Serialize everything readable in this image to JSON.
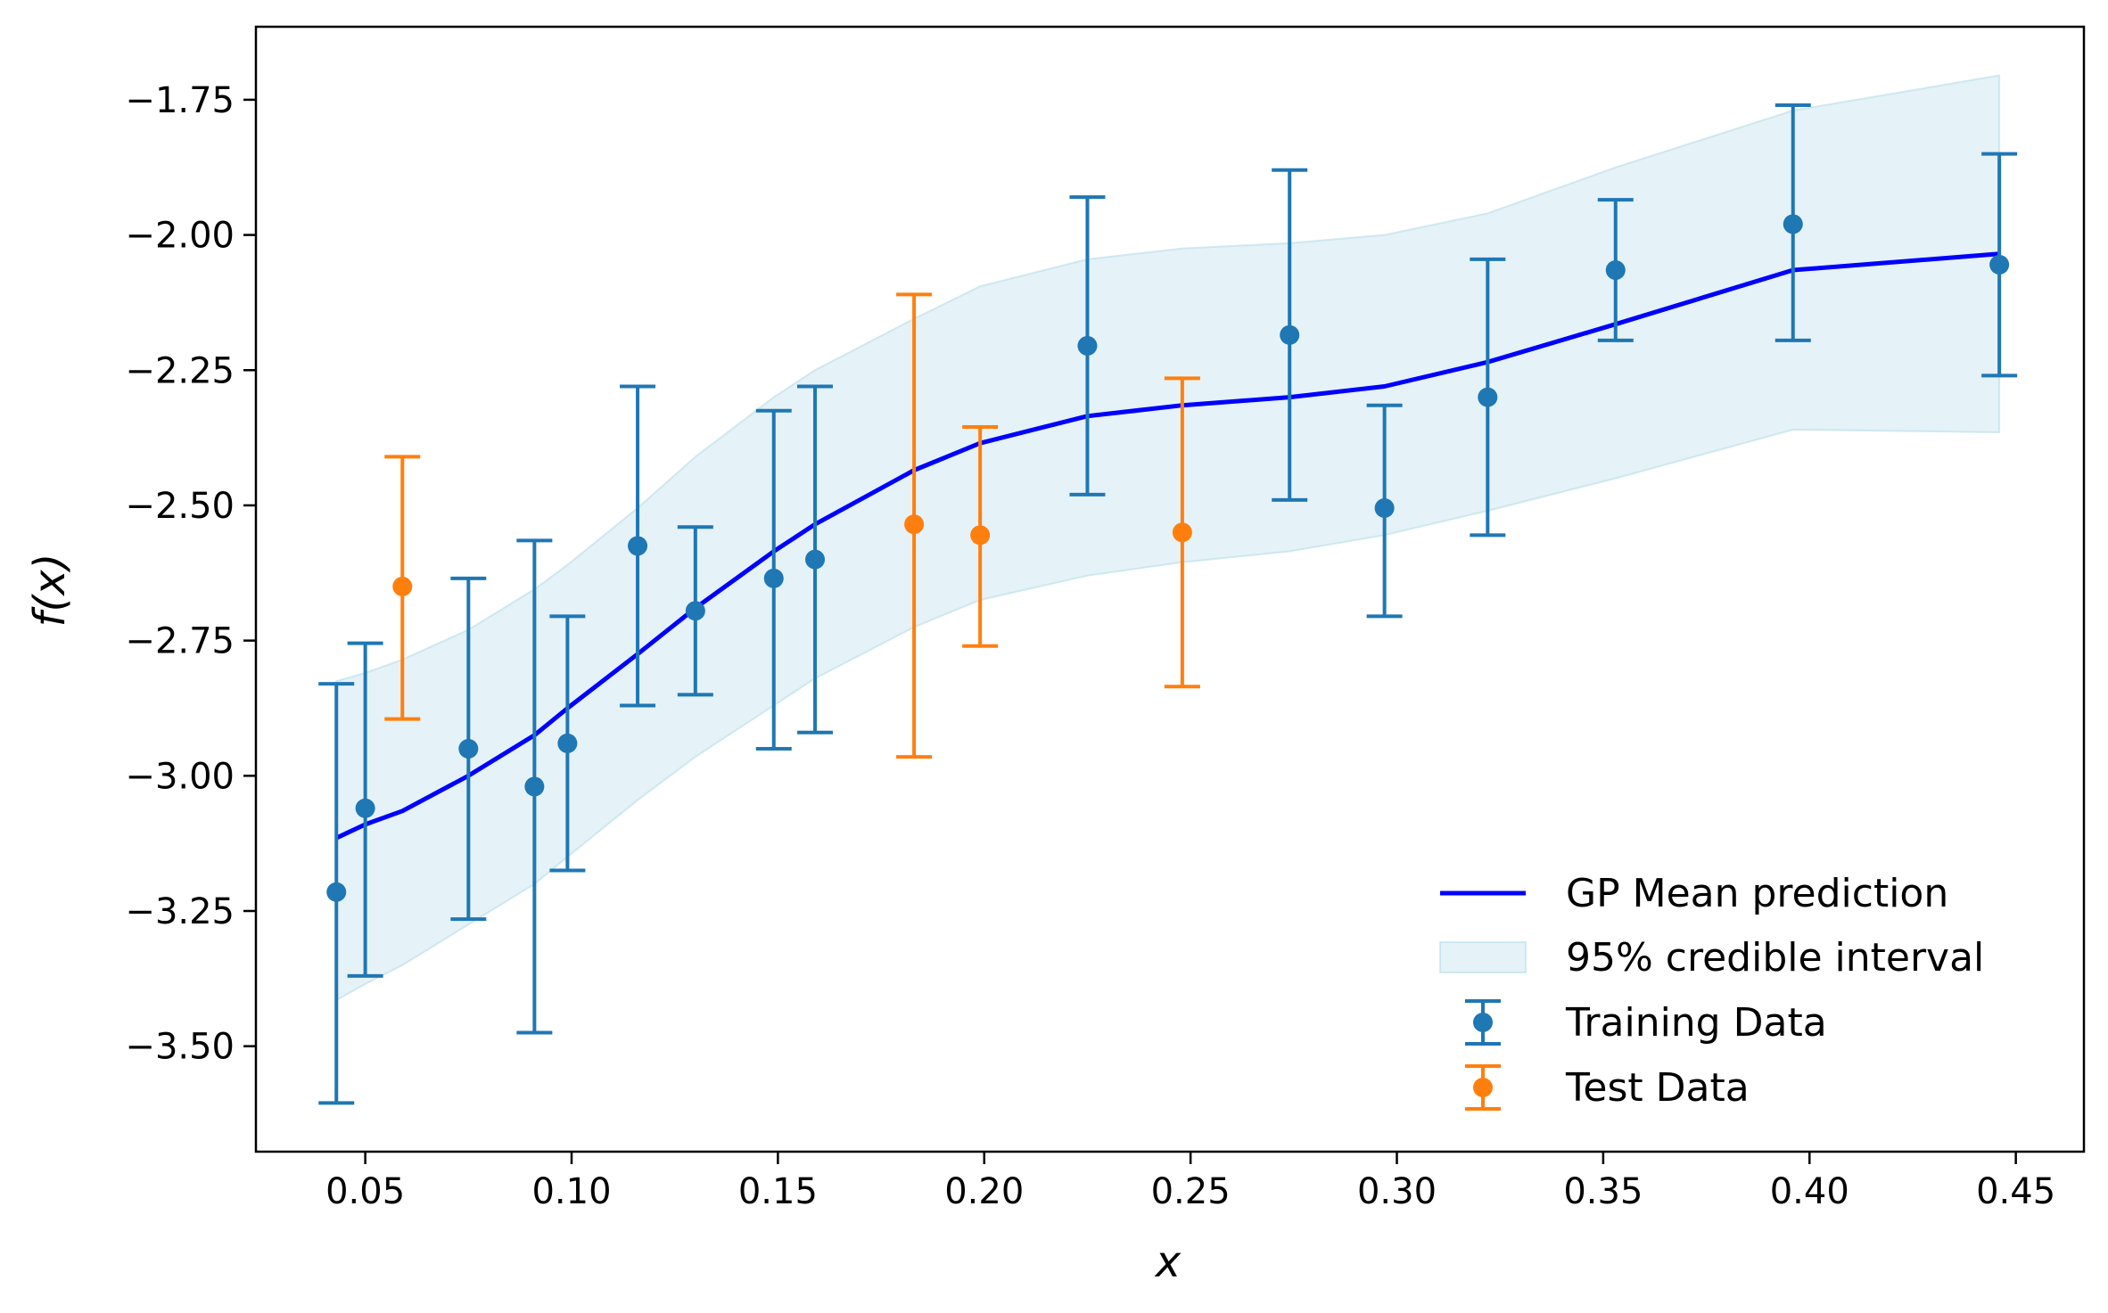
{
  "chart_data": {
    "type": "scatter",
    "title": "",
    "xlabel": "x",
    "ylabel": "f(x)",
    "xlim": [
      0.0235,
      0.4665
    ],
    "ylim": [
      -3.695,
      -1.615
    ],
    "xticks": [
      0.05,
      0.1,
      0.15,
      0.2,
      0.25,
      0.3,
      0.35,
      0.4,
      0.45
    ],
    "xtick_labels": [
      "0.05",
      "0.10",
      "0.15",
      "0.20",
      "0.25",
      "0.30",
      "0.35",
      "0.40",
      "0.45"
    ],
    "yticks": [
      -1.75,
      -2.0,
      -2.25,
      -2.5,
      -2.75,
      -3.0,
      -3.25,
      -3.5
    ],
    "ytick_labels": [
      "−1.75",
      "−2.00",
      "−2.25",
      "−2.50",
      "−2.75",
      "−3.00",
      "−3.25",
      "−3.50"
    ],
    "grid": false,
    "legend_position": "lower-right",
    "legend": [
      {
        "label": "GP Mean prediction",
        "kind": "line",
        "color": "#0000ff"
      },
      {
        "label": "95% credible interval",
        "kind": "band",
        "color": "#add8e6"
      },
      {
        "label": "Training Data",
        "kind": "errorbar",
        "color": "#1f77b4"
      },
      {
        "label": "Test Data",
        "kind": "errorbar",
        "color": "#ff7f0e"
      }
    ],
    "mean_prediction": {
      "color": "#0000ff",
      "x": [
        0.043,
        0.05,
        0.059,
        0.075,
        0.091,
        0.099,
        0.116,
        0.13,
        0.149,
        0.159,
        0.183,
        0.199,
        0.225,
        0.248,
        0.274,
        0.297,
        0.322,
        0.353,
        0.396,
        0.446
      ],
      "y": [
        -3.115,
        -3.09,
        -3.065,
        -3.0,
        -2.925,
        -2.875,
        -2.775,
        -2.69,
        -2.585,
        -2.535,
        -2.435,
        -2.385,
        -2.335,
        -2.315,
        -2.3,
        -2.28,
        -2.235,
        -2.165,
        -2.065,
        -2.035
      ]
    },
    "credible_interval": {
      "color": "#add8e6",
      "x": [
        0.043,
        0.05,
        0.059,
        0.075,
        0.091,
        0.099,
        0.116,
        0.13,
        0.149,
        0.159,
        0.183,
        0.199,
        0.225,
        0.248,
        0.274,
        0.297,
        0.322,
        0.353,
        0.396,
        0.446
      ],
      "upper": [
        -2.825,
        -2.81,
        -2.785,
        -2.73,
        -2.655,
        -2.61,
        -2.505,
        -2.41,
        -2.3,
        -2.25,
        -2.155,
        -2.095,
        -2.045,
        -2.025,
        -2.015,
        -2.0,
        -1.96,
        -1.875,
        -1.77,
        -1.705
      ],
      "lower": [
        -3.415,
        -3.385,
        -3.35,
        -3.275,
        -3.2,
        -3.15,
        -3.045,
        -2.965,
        -2.87,
        -2.82,
        -2.725,
        -2.675,
        -2.63,
        -2.605,
        -2.585,
        -2.555,
        -2.51,
        -2.45,
        -2.36,
        -2.365
      ]
    },
    "series": [
      {
        "name": "Training Data",
        "color": "#1f77b4",
        "points": [
          {
            "x": 0.043,
            "y": -3.215,
            "ylow": -3.605,
            "yhigh": -2.83
          },
          {
            "x": 0.05,
            "y": -3.06,
            "ylow": -3.37,
            "yhigh": -2.755
          },
          {
            "x": 0.075,
            "y": -2.95,
            "ylow": -3.265,
            "yhigh": -2.635
          },
          {
            "x": 0.091,
            "y": -3.02,
            "ylow": -3.475,
            "yhigh": -2.565
          },
          {
            "x": 0.099,
            "y": -2.94,
            "ylow": -3.175,
            "yhigh": -2.705
          },
          {
            "x": 0.116,
            "y": -2.575,
            "ylow": -2.87,
            "yhigh": -2.28
          },
          {
            "x": 0.13,
            "y": -2.695,
            "ylow": -2.85,
            "yhigh": -2.54
          },
          {
            "x": 0.149,
            "y": -2.635,
            "ylow": -2.95,
            "yhigh": -2.325
          },
          {
            "x": 0.159,
            "y": -2.6,
            "ylow": -2.92,
            "yhigh": -2.28
          },
          {
            "x": 0.225,
            "y": -2.205,
            "ylow": -2.48,
            "yhigh": -1.93
          },
          {
            "x": 0.274,
            "y": -2.185,
            "ylow": -2.49,
            "yhigh": -1.88
          },
          {
            "x": 0.297,
            "y": -2.505,
            "ylow": -2.705,
            "yhigh": -2.315
          },
          {
            "x": 0.322,
            "y": -2.3,
            "ylow": -2.555,
            "yhigh": -2.045
          },
          {
            "x": 0.353,
            "y": -2.065,
            "ylow": -2.195,
            "yhigh": -1.935
          },
          {
            "x": 0.396,
            "y": -1.98,
            "ylow": -2.195,
            "yhigh": -1.76
          },
          {
            "x": 0.446,
            "y": -2.055,
            "ylow": -2.26,
            "yhigh": -1.85
          }
        ]
      },
      {
        "name": "Test Data",
        "color": "#ff7f0e",
        "points": [
          {
            "x": 0.059,
            "y": -2.65,
            "ylow": -2.895,
            "yhigh": -2.41
          },
          {
            "x": 0.183,
            "y": -2.535,
            "ylow": -2.965,
            "yhigh": -2.11
          },
          {
            "x": 0.199,
            "y": -2.555,
            "ylow": -2.76,
            "yhigh": -2.355
          },
          {
            "x": 0.248,
            "y": -2.55,
            "ylow": -2.835,
            "yhigh": -2.265
          }
        ]
      }
    ]
  }
}
